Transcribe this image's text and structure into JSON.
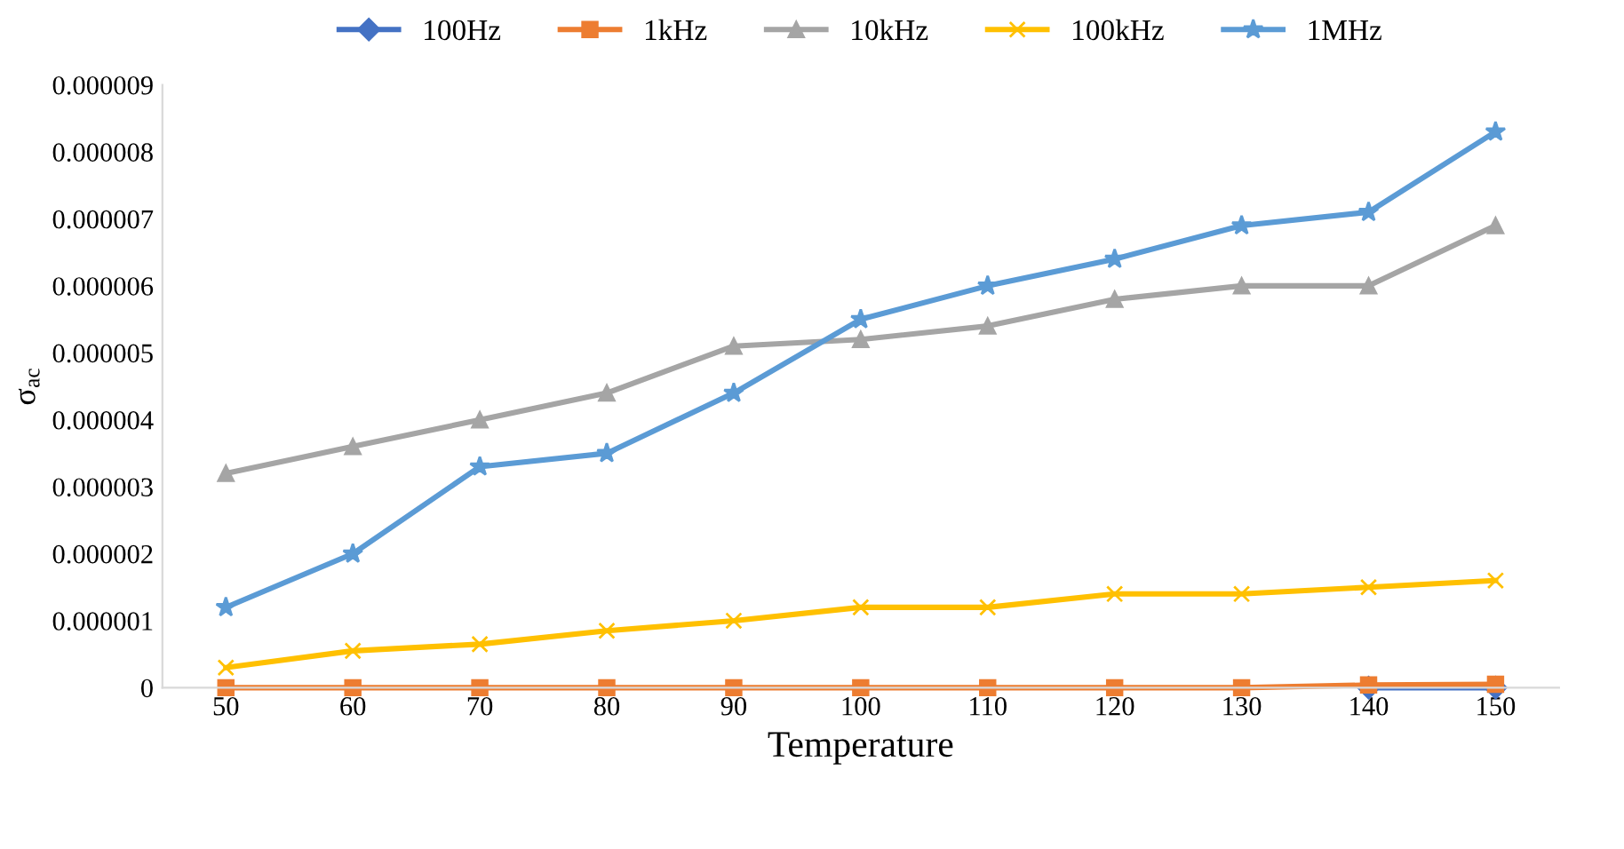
{
  "chart_data": {
    "type": "line",
    "xlabel": "Temperature",
    "ylabel": "σ$_{ac}$",
    "categories": [
      "50",
      "60",
      "70",
      "80",
      "90",
      "100",
      "110",
      "120",
      "130",
      "140",
      "150"
    ],
    "series": [
      {
        "name": "100Hz",
        "color": "#4472c4",
        "marker": "diamond",
        "values": [
          null,
          null,
          null,
          null,
          null,
          null,
          null,
          null,
          null,
          0,
          0
        ]
      },
      {
        "name": "1kHz",
        "color": "#ed7d31",
        "marker": "square",
        "values": [
          0,
          0,
          0,
          0,
          0,
          0,
          0,
          0,
          0,
          4e-08,
          5e-08
        ]
      },
      {
        "name": "10kHz",
        "color": "#a5a5a5",
        "marker": "triangle",
        "values": [
          3.2e-06,
          3.6e-06,
          4e-06,
          4.4e-06,
          5.1e-06,
          5.2e-06,
          5.4e-06,
          5.8e-06,
          6e-06,
          6e-06,
          6.9e-06
        ]
      },
      {
        "name": "100kHz",
        "color": "#ffc000",
        "marker": "cross",
        "values": [
          3e-07,
          5.5e-07,
          6.5e-07,
          8.5e-07,
          1e-06,
          1.2e-06,
          1.2e-06,
          1.4e-06,
          1.4e-06,
          1.5e-06,
          1.6e-06
        ]
      },
      {
        "name": "1MHz",
        "color": "#5b9bd5",
        "marker": "star",
        "values": [
          1.2e-06,
          2e-06,
          3.3e-06,
          3.5e-06,
          4.4e-06,
          5.5e-06,
          6e-06,
          6.4e-06,
          6.9e-06,
          7.1e-06,
          8.3e-06
        ]
      }
    ],
    "ylim": [
      0,
      9e-06
    ],
    "yticks": [
      0,
      {
        "value": 1e-06,
        "label": "0.000001"
      },
      {
        "value": 2e-06,
        "label": "0.000002"
      },
      {
        "value": 3e-06,
        "label": "0.000003"
      },
      {
        "value": 4e-06,
        "label": "0.000004"
      },
      {
        "value": 5e-06,
        "label": "0.000005"
      },
      {
        "value": 6e-06,
        "label": "0.000006"
      },
      {
        "value": 7e-06,
        "label": "0.000007"
      },
      {
        "value": 8e-06,
        "label": "0.000008"
      },
      {
        "value": 9e-06,
        "label": "0.000009"
      }
    ],
    "grid": false,
    "legend": "top",
    "line_style": "solid"
  }
}
